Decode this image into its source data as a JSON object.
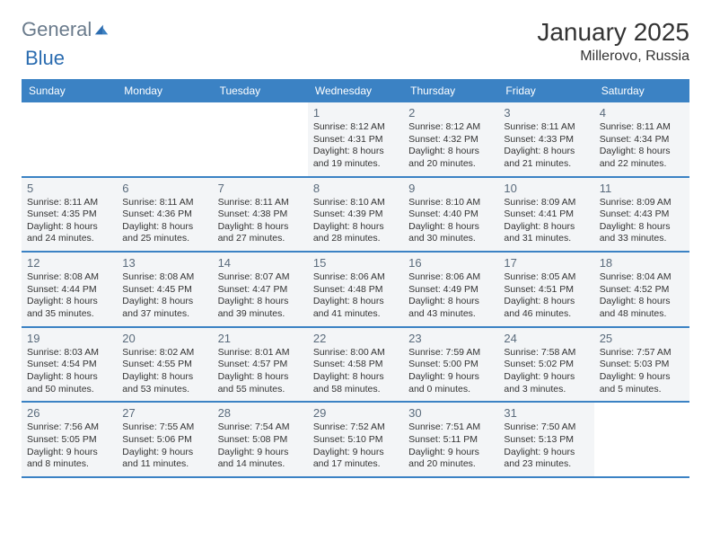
{
  "logo": {
    "part1": "General",
    "part2": "Blue"
  },
  "title": "January 2025",
  "location": "Millerovo, Russia",
  "colors": {
    "header_bg": "#3b82c4",
    "cell_bg": "#f3f5f7",
    "daynum_color": "#5a6b7c",
    "text_color": "#333333",
    "logo_general": "#6a7b8c",
    "logo_blue": "#2b6cb0",
    "divider": "#3b82c4"
  },
  "daysOfWeek": [
    "Sunday",
    "Monday",
    "Tuesday",
    "Wednesday",
    "Thursday",
    "Friday",
    "Saturday"
  ],
  "weeks": [
    [
      {
        "empty": true
      },
      {
        "empty": true
      },
      {
        "empty": true
      },
      {
        "day": "1",
        "sunrise": "8:12 AM",
        "sunset": "4:31 PM",
        "daylight_h": "8",
        "daylight_m": "19"
      },
      {
        "day": "2",
        "sunrise": "8:12 AM",
        "sunset": "4:32 PM",
        "daylight_h": "8",
        "daylight_m": "20"
      },
      {
        "day": "3",
        "sunrise": "8:11 AM",
        "sunset": "4:33 PM",
        "daylight_h": "8",
        "daylight_m": "21"
      },
      {
        "day": "4",
        "sunrise": "8:11 AM",
        "sunset": "4:34 PM",
        "daylight_h": "8",
        "daylight_m": "22"
      }
    ],
    [
      {
        "day": "5",
        "sunrise": "8:11 AM",
        "sunset": "4:35 PM",
        "daylight_h": "8",
        "daylight_m": "24"
      },
      {
        "day": "6",
        "sunrise": "8:11 AM",
        "sunset": "4:36 PM",
        "daylight_h": "8",
        "daylight_m": "25"
      },
      {
        "day": "7",
        "sunrise": "8:11 AM",
        "sunset": "4:38 PM",
        "daylight_h": "8",
        "daylight_m": "27"
      },
      {
        "day": "8",
        "sunrise": "8:10 AM",
        "sunset": "4:39 PM",
        "daylight_h": "8",
        "daylight_m": "28"
      },
      {
        "day": "9",
        "sunrise": "8:10 AM",
        "sunset": "4:40 PM",
        "daylight_h": "8",
        "daylight_m": "30"
      },
      {
        "day": "10",
        "sunrise": "8:09 AM",
        "sunset": "4:41 PM",
        "daylight_h": "8",
        "daylight_m": "31"
      },
      {
        "day": "11",
        "sunrise": "8:09 AM",
        "sunset": "4:43 PM",
        "daylight_h": "8",
        "daylight_m": "33"
      }
    ],
    [
      {
        "day": "12",
        "sunrise": "8:08 AM",
        "sunset": "4:44 PM",
        "daylight_h": "8",
        "daylight_m": "35"
      },
      {
        "day": "13",
        "sunrise": "8:08 AM",
        "sunset": "4:45 PM",
        "daylight_h": "8",
        "daylight_m": "37"
      },
      {
        "day": "14",
        "sunrise": "8:07 AM",
        "sunset": "4:47 PM",
        "daylight_h": "8",
        "daylight_m": "39"
      },
      {
        "day": "15",
        "sunrise": "8:06 AM",
        "sunset": "4:48 PM",
        "daylight_h": "8",
        "daylight_m": "41"
      },
      {
        "day": "16",
        "sunrise": "8:06 AM",
        "sunset": "4:49 PM",
        "daylight_h": "8",
        "daylight_m": "43"
      },
      {
        "day": "17",
        "sunrise": "8:05 AM",
        "sunset": "4:51 PM",
        "daylight_h": "8",
        "daylight_m": "46"
      },
      {
        "day": "18",
        "sunrise": "8:04 AM",
        "sunset": "4:52 PM",
        "daylight_h": "8",
        "daylight_m": "48"
      }
    ],
    [
      {
        "day": "19",
        "sunrise": "8:03 AM",
        "sunset": "4:54 PM",
        "daylight_h": "8",
        "daylight_m": "50"
      },
      {
        "day": "20",
        "sunrise": "8:02 AM",
        "sunset": "4:55 PM",
        "daylight_h": "8",
        "daylight_m": "53"
      },
      {
        "day": "21",
        "sunrise": "8:01 AM",
        "sunset": "4:57 PM",
        "daylight_h": "8",
        "daylight_m": "55"
      },
      {
        "day": "22",
        "sunrise": "8:00 AM",
        "sunset": "4:58 PM",
        "daylight_h": "8",
        "daylight_m": "58"
      },
      {
        "day": "23",
        "sunrise": "7:59 AM",
        "sunset": "5:00 PM",
        "daylight_h": "9",
        "daylight_m": "0"
      },
      {
        "day": "24",
        "sunrise": "7:58 AM",
        "sunset": "5:02 PM",
        "daylight_h": "9",
        "daylight_m": "3"
      },
      {
        "day": "25",
        "sunrise": "7:57 AM",
        "sunset": "5:03 PM",
        "daylight_h": "9",
        "daylight_m": "5"
      }
    ],
    [
      {
        "day": "26",
        "sunrise": "7:56 AM",
        "sunset": "5:05 PM",
        "daylight_h": "9",
        "daylight_m": "8"
      },
      {
        "day": "27",
        "sunrise": "7:55 AM",
        "sunset": "5:06 PM",
        "daylight_h": "9",
        "daylight_m": "11"
      },
      {
        "day": "28",
        "sunrise": "7:54 AM",
        "sunset": "5:08 PM",
        "daylight_h": "9",
        "daylight_m": "14"
      },
      {
        "day": "29",
        "sunrise": "7:52 AM",
        "sunset": "5:10 PM",
        "daylight_h": "9",
        "daylight_m": "17"
      },
      {
        "day": "30",
        "sunrise": "7:51 AM",
        "sunset": "5:11 PM",
        "daylight_h": "9",
        "daylight_m": "20"
      },
      {
        "day": "31",
        "sunrise": "7:50 AM",
        "sunset": "5:13 PM",
        "daylight_h": "9",
        "daylight_m": "23"
      },
      {
        "empty": true
      }
    ]
  ]
}
